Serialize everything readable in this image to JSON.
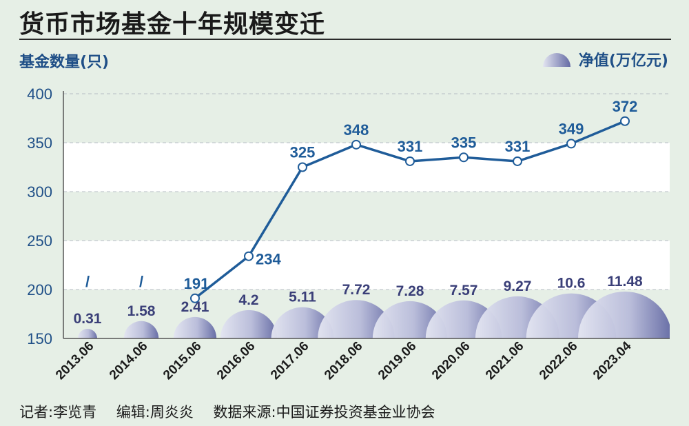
{
  "title": "货币市场基金十年规模变迁",
  "footer": {
    "reporter": "记者:李览青",
    "editor": "编辑:周炎炎",
    "source": "数据来源:中国证券投资基金业协会"
  },
  "colors": {
    "line": "#1f5c99",
    "axis_text": "#1f4f87",
    "bubble_light": "#e3e5f1",
    "bubble_dark": "#646aa4",
    "bubble_label": "#3a3f78",
    "background": "#e6efe6",
    "plot_band_white": "#ffffff"
  },
  "chart_data": {
    "type": "line",
    "categories": [
      "2013.06",
      "2014.06",
      "2015.06",
      "2016.06",
      "2017.06",
      "2018.06",
      "2019.06",
      "2020.06",
      "2021.06",
      "2022.06",
      "2023.04"
    ],
    "series": [
      {
        "name": "基金数量(只)",
        "type": "line",
        "values": [
          null,
          null,
          191,
          234,
          325,
          348,
          331,
          335,
          331,
          349,
          372
        ],
        "labels": [
          "/",
          "/",
          "191",
          "234",
          "325",
          "348",
          "331",
          "335",
          "331",
          "349",
          "372"
        ]
      },
      {
        "name": "净值(万亿元)",
        "type": "bubble",
        "values": [
          0.31,
          1.58,
          2.41,
          4.2,
          5.11,
          7.72,
          7.28,
          7.57,
          9.27,
          10.6,
          11.48
        ],
        "labels": [
          "0.31",
          "1.58",
          "2.41",
          "4.2",
          "5.11",
          "7.72",
          "7.28",
          "7.57",
          "9.27",
          "10.6",
          "11.48"
        ]
      }
    ],
    "ylabel": "基金数量(只)",
    "legend_label": "净值(万亿元)",
    "ylim": [
      150,
      400
    ],
    "yticks": [
      150,
      200,
      250,
      300,
      350,
      400
    ],
    "grid": true,
    "legend_position": "top-right"
  }
}
